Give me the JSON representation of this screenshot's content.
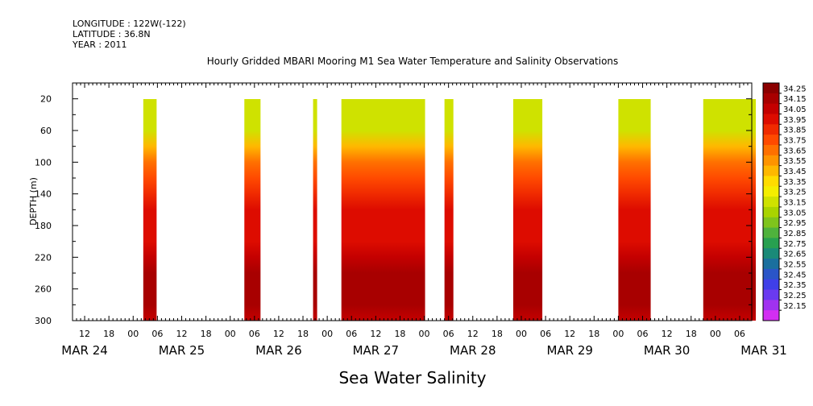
{
  "header": {
    "longitude_line": "LONGITUDE : 122W(-122)",
    "latitude_line": "LATITUDE : 36.8N",
    "year_line": "YEAR : 2011"
  },
  "chart_data": {
    "type": "heatmap",
    "title": "Hourly Gridded MBARI Mooring M1 Sea Water Temperature and Salinity Observations",
    "xlabel": "Sea Water Salinity",
    "ylabel": "DEPTH (m)",
    "ylim": [
      300,
      0
    ],
    "yticks": [
      20,
      60,
      100,
      140,
      180,
      220,
      260,
      300
    ],
    "x_hour_ticks": [
      "12",
      "18",
      "00",
      "06",
      "12",
      "18",
      "00",
      "06",
      "12",
      "18",
      "00",
      "06",
      "12",
      "18",
      "00",
      "06",
      "12",
      "18",
      "00",
      "06",
      "12",
      "18",
      "00",
      "06",
      "12",
      "18",
      "00",
      "06"
    ],
    "x_date_labels": [
      "MAR 24",
      "MAR 25",
      "MAR 26",
      "MAR 27",
      "MAR 28",
      "MAR 29",
      "MAR 30",
      "MAR 31"
    ],
    "time_range_hours_from_mar24_00": [
      9,
      177
    ],
    "data_segments_hours": [
      [
        26.5,
        29.8
      ],
      [
        51.5,
        55.5
      ],
      [
        68.5,
        69.5
      ],
      [
        75.5,
        96.2
      ],
      [
        101.0,
        103.2
      ],
      [
        118.0,
        125.2
      ],
      [
        144.0,
        152.0
      ],
      [
        165.0,
        178.0
      ]
    ],
    "salinity_profile": {
      "depths": [
        20,
        40,
        60,
        80,
        100,
        120,
        140,
        160,
        180,
        200,
        220,
        240,
        260,
        280,
        300
      ],
      "values": [
        33.15,
        33.15,
        33.2,
        33.45,
        33.65,
        33.8,
        33.92,
        33.95,
        33.97,
        34.0,
        34.08,
        34.15,
        34.2,
        34.15,
        34.1
      ]
    },
    "colorbar": {
      "levels": [
        "34.25",
        "34.15",
        "34.05",
        "33.95",
        "33.85",
        "33.75",
        "33.65",
        "33.55",
        "33.45",
        "33.35",
        "33.25",
        "33.15",
        "33.05",
        "32.95",
        "32.85",
        "32.75",
        "32.65",
        "32.55",
        "32.45",
        "32.35",
        "32.25",
        "32.15"
      ],
      "colors": [
        "#8b0000",
        "#a80000",
        "#c40000",
        "#dd0c00",
        "#f02a00",
        "#ff4a00",
        "#ff7000",
        "#ff9400",
        "#ffb800",
        "#ffdc00",
        "#f4ee00",
        "#cfe200",
        "#a9d400",
        "#7fc41c",
        "#4fb23c",
        "#28a050",
        "#1a8a78",
        "#1a6f9e",
        "#2a55c8",
        "#3f3fe8",
        "#6a3af0",
        "#a032f0",
        "#d22ef2"
      ]
    }
  }
}
